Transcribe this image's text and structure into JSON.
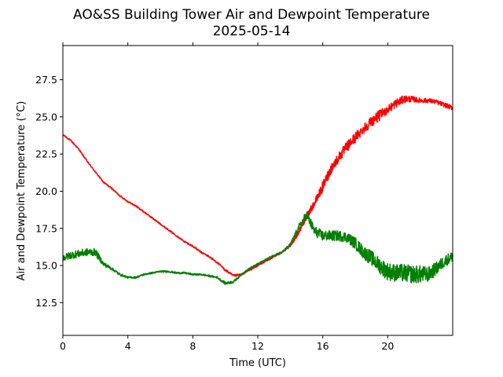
{
  "chart_data": {
    "type": "line",
    "title": "AO&SS Building Tower Air and Dewpoint Temperature",
    "subtitle": "2025-05-14",
    "xlabel": "Time (UTC)",
    "ylabel": "Air and Dewpoint Temperature (°C)",
    "xlim": [
      0,
      24
    ],
    "ylim": [
      10.3,
      29.8
    ],
    "xticks": [
      0,
      4,
      8,
      12,
      16,
      20
    ],
    "xtick_labels": [
      "0",
      "4",
      "8",
      "12",
      "16",
      "20"
    ],
    "yticks": [
      12.5,
      15.0,
      17.5,
      20.0,
      22.5,
      25.0,
      27.5
    ],
    "ytick_labels": [
      "12.5",
      "15.0",
      "17.5",
      "20.0",
      "22.5",
      "25.0",
      "27.5"
    ],
    "grid": false,
    "legend": "none",
    "series": [
      {
        "color": "#ff0000",
        "x": [
          0,
          0.5,
          1,
          1.5,
          2,
          2.5,
          3,
          3.5,
          4,
          4.5,
          5,
          5.5,
          6,
          6.5,
          7,
          7.5,
          8,
          8.5,
          9,
          9.5,
          10,
          10.5,
          11,
          11.5,
          12,
          12.5,
          13,
          13.5,
          14,
          14.5,
          15,
          15.5,
          16,
          16.5,
          17,
          17.5,
          18,
          18.5,
          19,
          19.5,
          20,
          20.5,
          21,
          21.5,
          22,
          22.5,
          23,
          23.5,
          24
        ],
        "y": [
          23.8,
          23.4,
          22.8,
          22.0,
          21.3,
          20.6,
          20.2,
          19.7,
          19.3,
          19.0,
          18.6,
          18.2,
          17.8,
          17.4,
          17.0,
          16.6,
          16.3,
          15.9,
          15.6,
          15.2,
          14.7,
          14.3,
          14.4,
          14.7,
          15.0,
          15.3,
          15.6,
          15.9,
          16.3,
          17.2,
          18.3,
          19.2,
          20.3,
          21.5,
          22.3,
          23.0,
          23.6,
          24.2,
          24.7,
          25.1,
          25.5,
          25.9,
          26.2,
          26.2,
          26.1,
          26.1,
          26.0,
          25.8,
          25.6
        ],
        "noise": [
          0.05,
          0.05,
          0.05,
          0.05,
          0.05,
          0.05,
          0.05,
          0.05,
          0.05,
          0.05,
          0.05,
          0.05,
          0.05,
          0.05,
          0.05,
          0.05,
          0.06,
          0.06,
          0.06,
          0.06,
          0.08,
          0.08,
          0.06,
          0.06,
          0.06,
          0.06,
          0.06,
          0.06,
          0.08,
          0.15,
          0.2,
          0.25,
          0.35,
          0.35,
          0.35,
          0.35,
          0.35,
          0.35,
          0.35,
          0.35,
          0.3,
          0.3,
          0.25,
          0.2,
          0.15,
          0.15,
          0.15,
          0.15,
          0.15
        ]
      },
      {
        "color": "#008000",
        "x": [
          0,
          0.5,
          1,
          1.5,
          2,
          2.5,
          3,
          3.5,
          4,
          4.5,
          5,
          5.5,
          6,
          6.5,
          7,
          7.5,
          8,
          8.5,
          9,
          9.5,
          10,
          10.5,
          11,
          11.5,
          12,
          12.5,
          13,
          13.5,
          14,
          14.5,
          15,
          15.5,
          16,
          16.5,
          17,
          17.5,
          18,
          18.5,
          19,
          19.5,
          20,
          20.5,
          21,
          21.5,
          22,
          22.5,
          23,
          23.5,
          24
        ],
        "y": [
          15.5,
          15.7,
          15.8,
          15.9,
          15.9,
          15.1,
          14.8,
          14.4,
          14.2,
          14.2,
          14.4,
          14.5,
          14.6,
          14.6,
          14.5,
          14.5,
          14.4,
          14.4,
          14.3,
          14.2,
          13.8,
          13.9,
          14.4,
          14.8,
          15.1,
          15.4,
          15.7,
          15.9,
          16.4,
          17.5,
          18.4,
          17.3,
          17.0,
          17.0,
          17.0,
          16.9,
          16.5,
          15.9,
          15.5,
          15.0,
          14.6,
          14.5,
          14.5,
          14.4,
          14.4,
          14.4,
          14.8,
          15.3,
          15.6
        ],
        "noise": [
          0.25,
          0.25,
          0.25,
          0.25,
          0.25,
          0.15,
          0.1,
          0.08,
          0.06,
          0.06,
          0.06,
          0.06,
          0.06,
          0.06,
          0.06,
          0.06,
          0.06,
          0.06,
          0.06,
          0.06,
          0.1,
          0.08,
          0.06,
          0.06,
          0.06,
          0.06,
          0.06,
          0.06,
          0.1,
          0.2,
          0.3,
          0.35,
          0.35,
          0.35,
          0.35,
          0.35,
          0.4,
          0.45,
          0.5,
          0.55,
          0.6,
          0.6,
          0.6,
          0.6,
          0.6,
          0.5,
          0.45,
          0.4,
          0.35
        ]
      }
    ]
  }
}
